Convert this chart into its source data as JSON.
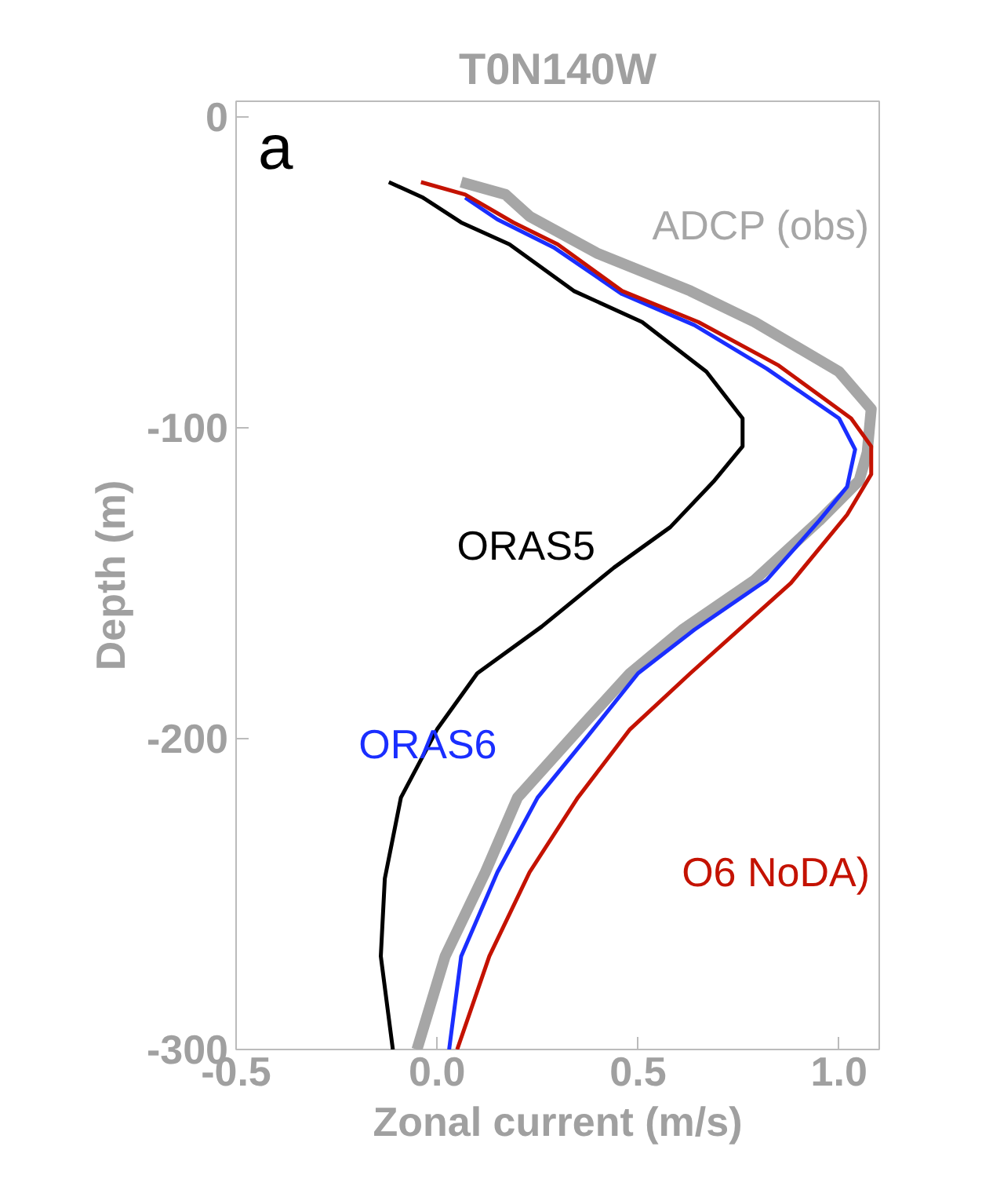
{
  "chart_data": {
    "type": "line",
    "title": "T0N140W",
    "xlabel": "Zonal current (m/s)",
    "ylabel": "Depth (m)",
    "xlim": [
      -0.5,
      1.1
    ],
    "ylim": [
      -300,
      5
    ],
    "xticks": [
      {
        "value": -0.5,
        "label": "-0.5"
      },
      {
        "value": 0,
        "label": "0.0"
      },
      {
        "value": 0.5,
        "label": "0.5"
      },
      {
        "value": 1,
        "label": "1.0"
      }
    ],
    "yticks": [
      0,
      -100,
      -200,
      -300
    ],
    "grid": false,
    "marker": "none",
    "line_style": "solid",
    "annotations": [
      "a"
    ],
    "series": [
      {
        "name": "ADCP (obs)",
        "color": "#a6a6a6",
        "x": [
          0.06,
          0.17,
          0.23,
          0.4,
          0.63,
          0.79,
          1.0,
          1.08,
          1.07,
          1.05,
          0.95,
          0.79,
          0.61,
          0.48,
          0.36,
          0.2,
          0.12,
          0.02,
          -0.05
        ],
        "values": [
          -21,
          -25,
          -32,
          -44,
          -56,
          -66,
          -82,
          -94,
          -108,
          -117,
          -130,
          -149,
          -165,
          -179,
          -196,
          -219,
          -243,
          -270,
          -300
        ]
      },
      {
        "name": "ORAS5",
        "color": "#000000",
        "x": [
          -0.12,
          -0.035,
          0.06,
          0.18,
          0.34,
          0.51,
          0.67,
          0.76,
          0.76,
          0.69,
          0.58,
          0.44,
          0.26,
          0.1,
          0.0,
          -0.09,
          -0.13,
          -0.14,
          -0.11
        ],
        "values": [
          -21,
          -26,
          -34,
          -41,
          -56,
          -66,
          -82,
          -97,
          -106,
          -117,
          -132,
          -145,
          -164,
          -179,
          -197,
          -219,
          -245,
          -270,
          -300
        ]
      },
      {
        "name": "ORAS6",
        "color": "#1a2eff",
        "x": [
          0.07,
          0.15,
          0.29,
          0.46,
          0.64,
          0.82,
          1.0,
          1.04,
          1.02,
          0.95,
          0.82,
          0.64,
          0.5,
          0.37,
          0.25,
          0.15,
          0.06,
          0.03
        ],
        "values": [
          -26,
          -33,
          -42,
          -57,
          -67,
          -81,
          -97,
          -107,
          -119,
          -130,
          -149,
          -165,
          -179,
          -200,
          -219,
          -243,
          -270,
          -300
        ]
      },
      {
        "name": "O6 NoDA)",
        "color": "#c41200",
        "x": [
          -0.04,
          0.07,
          0.19,
          0.3,
          0.46,
          0.65,
          0.85,
          1.03,
          1.08,
          1.08,
          1.02,
          0.88,
          0.63,
          0.48,
          0.35,
          0.23,
          0.13,
          0.05
        ],
        "values": [
          -21,
          -25,
          -34,
          -41,
          -56,
          -66,
          -80,
          -97,
          -106,
          -115,
          -128,
          -150,
          -179,
          -197,
          -219,
          -243,
          -270,
          -300
        ]
      }
    ]
  }
}
